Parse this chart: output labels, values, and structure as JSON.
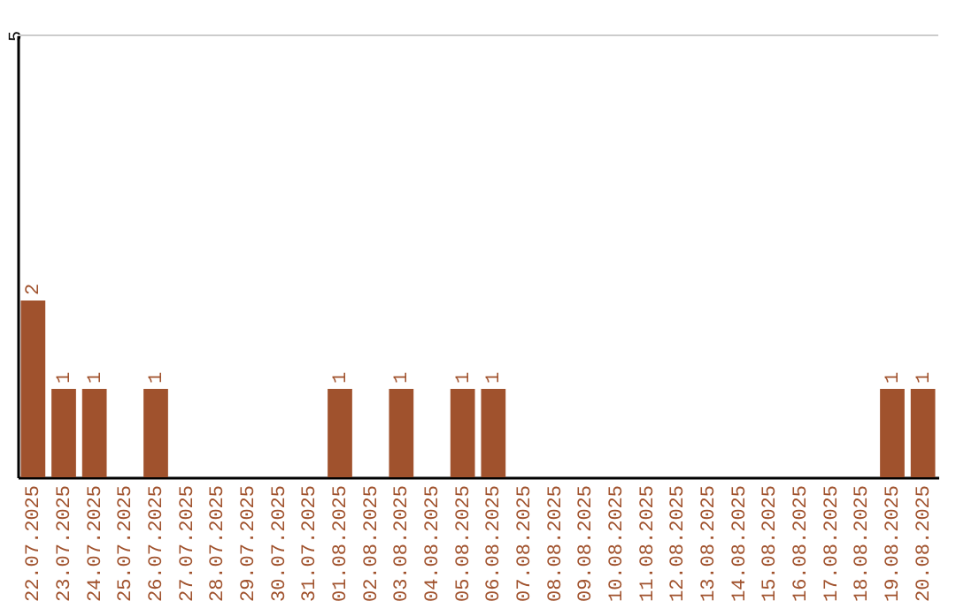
{
  "chart_data": {
    "type": "bar",
    "categories": [
      "22.07.2025",
      "23.07.2025",
      "24.07.2025",
      "25.07.2025",
      "26.07.2025",
      "27.07.2025",
      "28.07.2025",
      "29.07.2025",
      "30.07.2025",
      "31.07.2025",
      "01.08.2025",
      "02.08.2025",
      "03.08.2025",
      "04.08.2025",
      "05.08.2025",
      "06.08.2025",
      "07.08.2025",
      "08.08.2025",
      "09.08.2025",
      "10.08.2025",
      "11.08.2025",
      "12.08.2025",
      "13.08.2025",
      "14.08.2025",
      "15.08.2025",
      "16.08.2025",
      "17.08.2025",
      "18.08.2025",
      "19.08.2025",
      "20.08.2025"
    ],
    "values": [
      2,
      1,
      1,
      0,
      1,
      0,
      0,
      0,
      0,
      0,
      1,
      0,
      1,
      0,
      1,
      1,
      0,
      0,
      0,
      0,
      0,
      0,
      0,
      0,
      0,
      0,
      0,
      0,
      1,
      1
    ],
    "value_labels": [
      "2",
      "1",
      "1",
      null,
      "1",
      null,
      null,
      null,
      null,
      null,
      "1",
      null,
      "1",
      null,
      "1",
      "1",
      null,
      null,
      null,
      null,
      null,
      null,
      null,
      null,
      null,
      null,
      null,
      null,
      "1",
      "1"
    ],
    "color": "#a0522d",
    "ylim": [
      0,
      5
    ],
    "yticks": [
      5
    ],
    "ref_lines": [
      {
        "axis": "y",
        "value": 5,
        "color": "#cccccc"
      }
    ]
  }
}
